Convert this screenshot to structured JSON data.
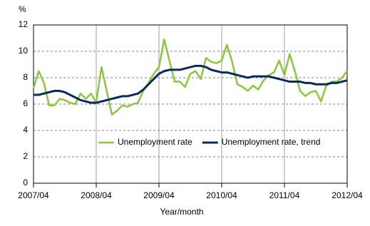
{
  "chart_data": {
    "type": "line",
    "y_unit": "%",
    "x_label": "Year/month",
    "categories": [
      "2007/04",
      null,
      null,
      null,
      null,
      null,
      null,
      null,
      null,
      null,
      null,
      null,
      "2008/04",
      null,
      null,
      null,
      null,
      null,
      null,
      null,
      null,
      null,
      null,
      null,
      "2009/04",
      null,
      null,
      null,
      null,
      null,
      null,
      null,
      null,
      null,
      null,
      null,
      "2010/04",
      null,
      null,
      null,
      null,
      null,
      null,
      null,
      null,
      null,
      null,
      null,
      "2011/04",
      null,
      null,
      null,
      null,
      null,
      null,
      null,
      null,
      null,
      null,
      null,
      "2012/04"
    ],
    "series": [
      {
        "name": "Unemployment rate",
        "color": "#8cc63f",
        "width": 2.5,
        "values": [
          7.2,
          8.5,
          7.6,
          5.9,
          5.9,
          6.4,
          6.3,
          6.1,
          6.0,
          6.8,
          6.4,
          6.8,
          6.1,
          8.8,
          7.0,
          5.2,
          5.5,
          5.9,
          5.8,
          6.0,
          6.1,
          7.0,
          7.6,
          8.3,
          8.8,
          10.9,
          9.3,
          7.7,
          7.7,
          7.3,
          8.3,
          8.5,
          7.9,
          9.5,
          9.2,
          9.1,
          9.3,
          10.5,
          9.2,
          7.5,
          7.3,
          7.0,
          7.4,
          7.1,
          7.8,
          8.2,
          8.4,
          9.3,
          8.2,
          9.8,
          8.5,
          7.0,
          6.6,
          6.9,
          7.0,
          6.2,
          7.4,
          7.7,
          7.7,
          8.0,
          8.5
        ]
      },
      {
        "name": "Unemployment rate, trend",
        "color": "#0b2a5c",
        "width": 3,
        "values": [
          6.7,
          6.7,
          6.8,
          6.9,
          7.0,
          7.0,
          6.9,
          6.7,
          6.5,
          6.3,
          6.2,
          6.1,
          6.1,
          6.2,
          6.3,
          6.4,
          6.5,
          6.6,
          6.6,
          6.7,
          6.8,
          7.1,
          7.5,
          7.9,
          8.3,
          8.5,
          8.6,
          8.6,
          8.6,
          8.7,
          8.8,
          8.9,
          8.9,
          8.8,
          8.6,
          8.5,
          8.4,
          8.4,
          8.3,
          8.2,
          8.1,
          8.0,
          8.1,
          8.1,
          8.1,
          8.1,
          8.0,
          7.9,
          7.8,
          7.7,
          7.7,
          7.7,
          7.6,
          7.6,
          7.5,
          7.5,
          7.5,
          7.6,
          7.6,
          7.7,
          7.8
        ]
      }
    ],
    "ylim": [
      0,
      12
    ],
    "yticks": [
      0,
      2,
      4,
      6,
      8,
      10,
      12
    ],
    "grid": true,
    "legend": "lower center"
  }
}
